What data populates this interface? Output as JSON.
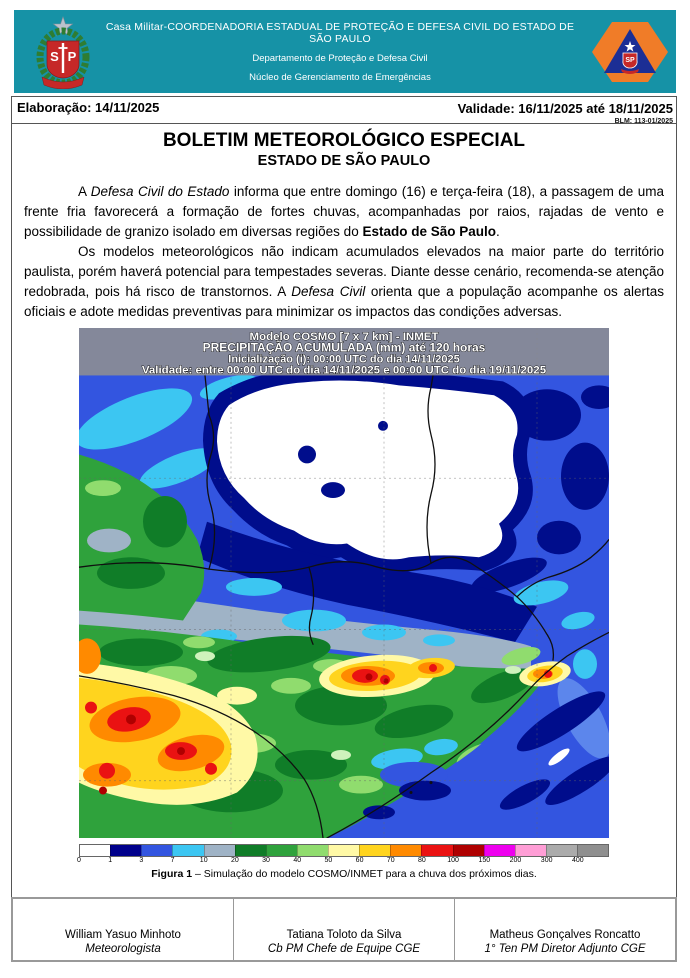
{
  "header": {
    "line1": "Casa Militar-COORDENADORIA ESTADUAL DE PROTEÇÃO E DEFESA CIVIL DO ESTADO DE SÃO PAULO",
    "line2": "Departamento de Proteção e Defesa Civil",
    "line3": "Núcleo de Gerenciamento de Emergências",
    "band_color": "#1692A6",
    "left_logo": "sao-paulo-state-coat-of-arms",
    "right_logo": "defesa-civil-sp-emblem"
  },
  "meta": {
    "elaboracao": "Elaboração: 14/11/2025",
    "validade": "Validade: 16/11/2025 até 18/11/2025",
    "blm": "BLM: 113-01/2025"
  },
  "title": {
    "main": "BOLETIM METEOROLÓGICO ESPECIAL",
    "sub": "ESTADO DE SÃO PAULO"
  },
  "body": {
    "p1": {
      "lead": "A ",
      "italic": "Defesa Civil do Estado",
      "text": " informa que entre domingo (16) e terça-feira (18), a passagem de uma frente fria favorecerá a formação de fortes chuvas, acompanhadas por raios, rajadas de vento e possibilidade de granizo isolado em diversas regiões do ",
      "bold": "Estado de São Paulo",
      "end": "."
    },
    "p2": {
      "text1": "Os modelos meteorológicos não indicam acumulados elevados na maior parte do território paulista, porém haverá potencial para tempestades severas. Diante desse cenário, recomenda-se atenção redobrada, pois há risco de transtornos. A ",
      "italic": "Defesa Civil",
      "text2": " orienta que a população acompanhe os alertas oficiais e adote medidas preventivas para minimizar os impactos das condições adversas."
    }
  },
  "figure": {
    "overlay": {
      "line1": "Modelo COSMO [7 x 7 km] - INMET",
      "line2": "PRECIPITAÇÃO ACUMULADA (mm) até 120 horas",
      "line3": "Inicialização (i): 00:00 UTC do dia 14/11/2025",
      "line4": "Validade: entre 00:00 UTC do dia 14/11/2025 e 00:00 UTC do dia 19/11/2025"
    },
    "caption": {
      "bold": "Figura 1",
      "rest": " – Simulação do modelo COSMO/INMET para a chuva dos próximos dias."
    }
  },
  "chart_data": {
    "type": "heatmap",
    "title": "PRECIPITAÇÃO ACUMULADA (mm) até 120 horas",
    "model": "Modelo COSMO [7 x 7 km] - INMET",
    "unit": "mm",
    "legend_position": "bottom",
    "scale_values": [
      0,
      1,
      3,
      7,
      10,
      20,
      30,
      40,
      50,
      60,
      70,
      80,
      100,
      150,
      200,
      300,
      400
    ],
    "scale_colors": [
      "#FFFFFF",
      "#00008C",
      "#3355E0",
      "#3CC6F2",
      "#9FB3C6",
      "#107D28",
      "#2FA23C",
      "#90DC6E",
      "#FFF9A6",
      "#FFD41E",
      "#FF8A00",
      "#EA1212",
      "#AF0000",
      "#EE00EE",
      "#FF9ED6",
      "#ABABAB",
      "#8F8F8F"
    ]
  },
  "signatures": [
    {
      "name": "William Yasuo Minhoto",
      "role": "Meteorologista"
    },
    {
      "name": "Tatiana Toloto da Silva",
      "role": "Cb PM Chefe de Equipe CGE"
    },
    {
      "name": "Matheus Gonçalves Roncatto",
      "role": "1° Ten PM Diretor Adjunto CGE"
    }
  ]
}
